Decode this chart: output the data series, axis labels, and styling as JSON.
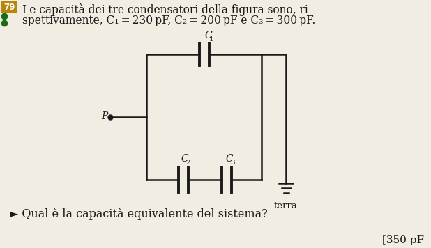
{
  "bg_color": "#f2ede3",
  "text_color": "#1a1a1a",
  "title_line1": "Le capacità dei tre condensatori della figura sono, ri-",
  "title_line2": "spettivamente, C₁ = 230 pF, C₂ = 200 pF e C₃ = 300 pF.",
  "question": "Qual è la capacità equivalente del sistema?",
  "answer": "[350 pF",
  "number_box_color": "#b8860b",
  "number_box_text": "79",
  "dot1_color": "#1a6b1a",
  "dot2_color": "#1a6b1a",
  "circuit_color": "#1a1a1a",
  "label_C1": "C",
  "label_C1_sub": "1",
  "label_C2": "C",
  "label_C2_sub": "2",
  "label_C3": "C",
  "label_C3_sub": "3",
  "label_P": "P",
  "label_terra": "terra",
  "font_size_title": 11.2,
  "font_size_labels": 10,
  "font_size_question": 11.5,
  "font_size_answer": 11
}
